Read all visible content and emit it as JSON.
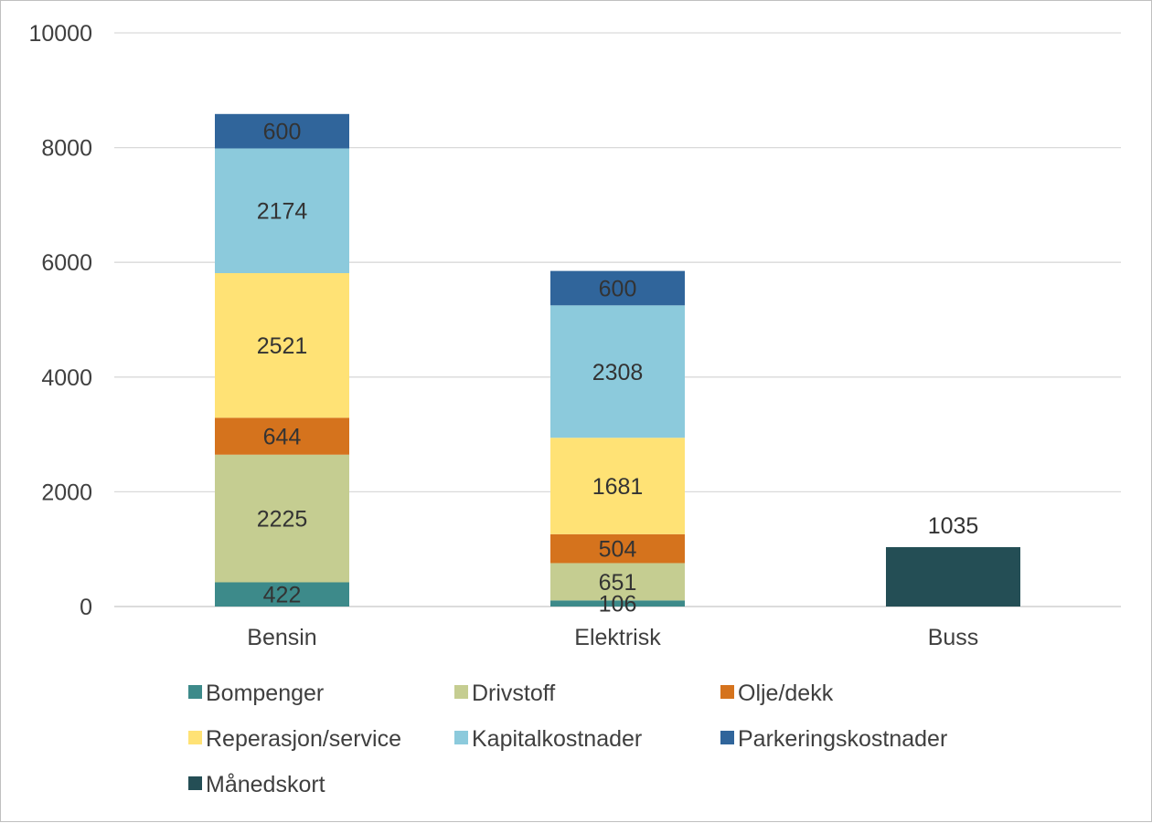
{
  "chart_data": {
    "type": "bar",
    "stacked": true,
    "categories": [
      "Bensin",
      "Elektrisk",
      "Buss"
    ],
    "ylim": [
      0,
      10000
    ],
    "yticks": [
      0,
      2000,
      4000,
      6000,
      8000,
      10000
    ],
    "grid": true,
    "legend_position": "bottom",
    "series": [
      {
        "name": "Bompenger",
        "color": "#3d8a8a",
        "values": [
          422,
          106,
          null
        ]
      },
      {
        "name": "Drivstoff",
        "color": "#c5cd91",
        "values": [
          2225,
          651,
          null
        ]
      },
      {
        "name": "Olje/dekk",
        "color": "#d5731d",
        "values": [
          644,
          504,
          null
        ]
      },
      {
        "name": "Reperasjon/service",
        "color": "#ffe275",
        "values": [
          2521,
          1681,
          null
        ]
      },
      {
        "name": "Kapitalkostnader",
        "color": "#8ccadc",
        "values": [
          2174,
          2308,
          null
        ]
      },
      {
        "name": "Parkeringskostnader",
        "color": "#30659b",
        "values": [
          600,
          600,
          null
        ]
      },
      {
        "name": "Månedskort",
        "color": "#244e55",
        "values": [
          null,
          null,
          1035
        ]
      }
    ]
  }
}
